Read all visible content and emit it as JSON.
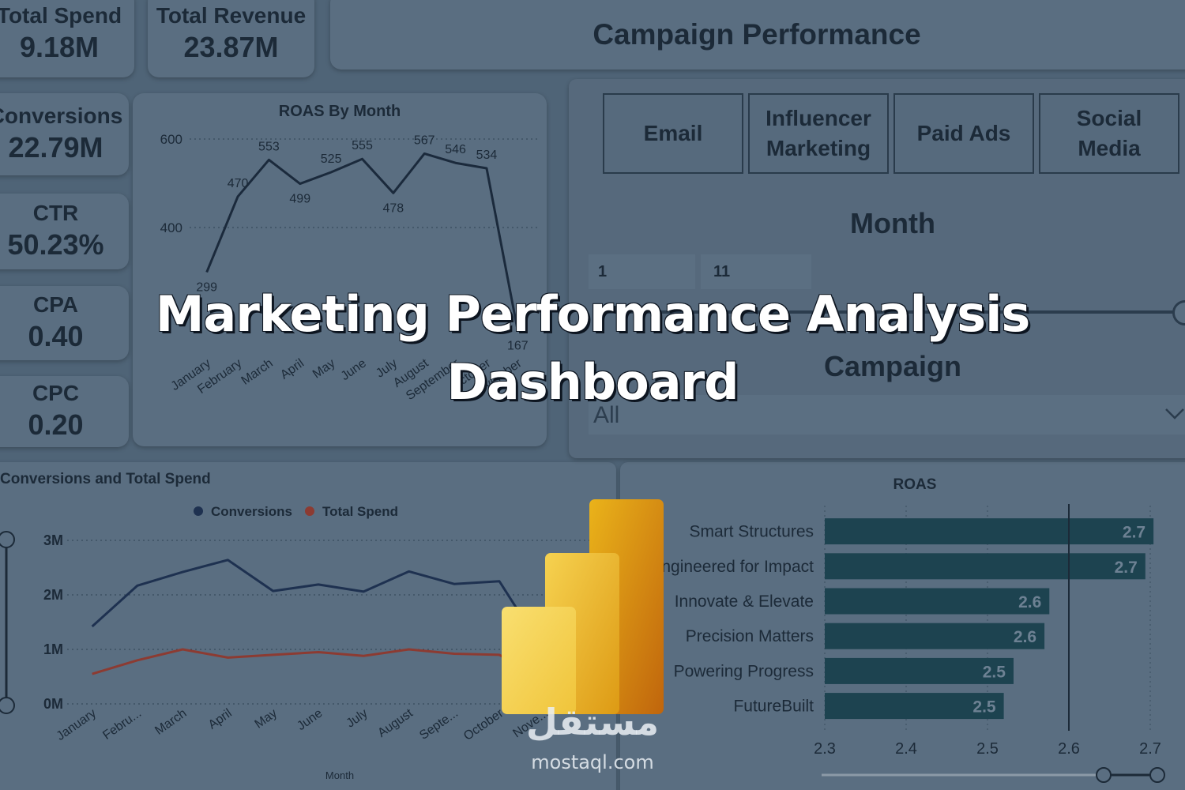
{
  "kpis": [
    {
      "label": "Total Spend",
      "value": "9.18M"
    },
    {
      "label": "Total Revenue",
      "value": "23.87M"
    },
    {
      "label": "Conversions",
      "value": "22.79M"
    },
    {
      "label": "CTR",
      "value": "50.23%"
    },
    {
      "label": "CPA",
      "value": "0.40"
    },
    {
      "label": "CPC",
      "value": "0.20"
    }
  ],
  "header": {
    "title": "Campaign Performance"
  },
  "channel_buttons": [
    "Email",
    "Influencer Marketing",
    "Paid Ads",
    "Social Media"
  ],
  "month_slicer": {
    "title": "Month",
    "start": "1",
    "end": "11"
  },
  "campaign_slicer": {
    "title": "Campaign",
    "selected": "All"
  },
  "banner": {
    "title": "Marketing Performance Analysis Dashboard"
  },
  "watermark": {
    "arabic": "مستقل",
    "site": "mostaql.com"
  },
  "chart_data": [
    {
      "type": "line",
      "title": "ROAS By Month",
      "categories": [
        "January",
        "February",
        "March",
        "April",
        "May",
        "June",
        "July",
        "August",
        "September",
        "October",
        "November"
      ],
      "values": [
        299,
        470,
        553,
        499,
        525,
        555,
        478,
        567,
        546,
        534,
        167
      ],
      "color": "#1b2a3c",
      "ylim": [
        150,
        620
      ],
      "yticks": [
        400,
        600
      ],
      "grid": true
    },
    {
      "type": "line",
      "title": "Conversions and Total Spend",
      "x_label": "Month",
      "categories": [
        "January",
        "Febru...",
        "March",
        "April",
        "May",
        "June",
        "July",
        "August",
        "Septe...",
        "October",
        "Nove..."
      ],
      "series": [
        {
          "name": "Conversions",
          "color": "#1e3150",
          "values": [
            1420000,
            2170000,
            2420000,
            2640000,
            2070000,
            2190000,
            2060000,
            2430000,
            2200000,
            2250000,
            950000
          ]
        },
        {
          "name": "Total Spend",
          "color": "#8c3b32",
          "values": [
            550000,
            800000,
            1000000,
            850000,
            900000,
            950000,
            880000,
            1000000,
            920000,
            900000,
            430000
          ]
        }
      ],
      "ylim": [
        0,
        3000000
      ],
      "yticks": [
        {
          "value": 0,
          "label": "0M"
        },
        {
          "value": 1000000,
          "label": "1M"
        },
        {
          "value": 2000000,
          "label": "2M"
        },
        {
          "value": 3000000,
          "label": "3M"
        }
      ],
      "grid": true,
      "legend": "top"
    },
    {
      "type": "bar",
      "orientation": "horizontal",
      "title": "ROAS",
      "categories": [
        "Smart Structures",
        "Engineered for Impact",
        "Innovate & Elevate",
        "Precision Matters",
        "Powering Progress",
        "FutureBuilt"
      ],
      "values": [
        2.704,
        2.694,
        2.576,
        2.57,
        2.532,
        2.52
      ],
      "value_labels": [
        "2.7",
        "2.7",
        "2.6",
        "2.6",
        "2.5",
        "2.5"
      ],
      "color": "#1d4350",
      "xlim": [
        2.3,
        2.7
      ],
      "xticks": [
        2.3,
        2.4,
        2.5,
        2.6,
        2.7
      ],
      "grid": true
    }
  ]
}
